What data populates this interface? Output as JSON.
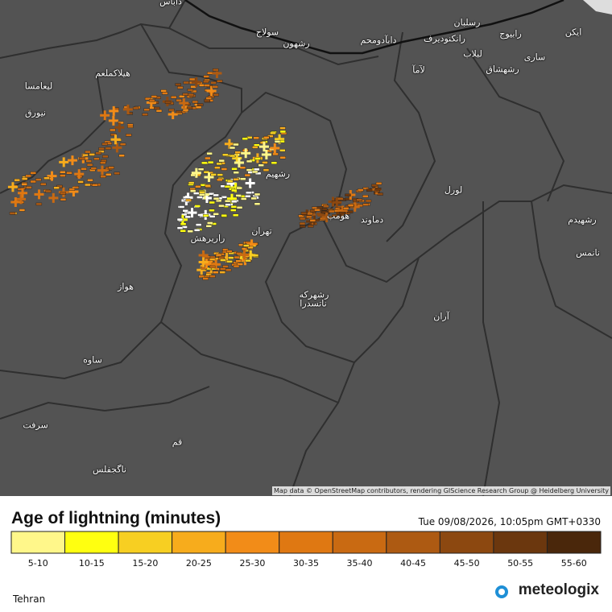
{
  "map": {
    "places": [
      "سولاج",
      "رشهون",
      "دابآدومحم",
      "رانکنودیرف",
      "رسلبان",
      "رابیوج",
      "ایکن",
      "لبلاب",
      "ساری",
      "رشهشاق",
      "لآمآ",
      "هیلاکملعم",
      "لیعامسا",
      "نیورق",
      "رشهیم",
      "راریرهش",
      "تهران",
      "دماوند",
      "هومب",
      "لورل",
      "رشهیدم",
      "نانمس",
      "هواز",
      "رشهرکه",
      "ناتسدرا",
      "آران",
      "ساوه",
      "قم",
      "سرفت",
      "ناگجفلس",
      "داباس"
    ],
    "attribution": "Map data © OpenStreetMap contributors, rendering GIScience Research Group @ Heidelberg University"
  },
  "legend": {
    "title": "Age of lightning (minutes)",
    "timestamp": "Tue 09/08/2026, 10:05pm GMT+0330",
    "items": [
      {
        "label": "5-10",
        "color": "#fff78a"
      },
      {
        "label": "10-15",
        "color": "#ffff10"
      },
      {
        "label": "15-20",
        "color": "#f7cf22"
      },
      {
        "label": "20-25",
        "color": "#f7ac1c"
      },
      {
        "label": "25-30",
        "color": "#f28c18"
      },
      {
        "label": "30-35",
        "color": "#df7812"
      },
      {
        "label": "35-40",
        "color": "#c96a12"
      },
      {
        "label": "40-45",
        "color": "#ad5a12"
      },
      {
        "label": "45-50",
        "color": "#8c4810"
      },
      {
        "label": "50-55",
        "color": "#6b370e"
      },
      {
        "label": "55-60",
        "color": "#4a270b"
      }
    ]
  },
  "footer": {
    "location": "Tehran",
    "brand": "meteologix"
  }
}
